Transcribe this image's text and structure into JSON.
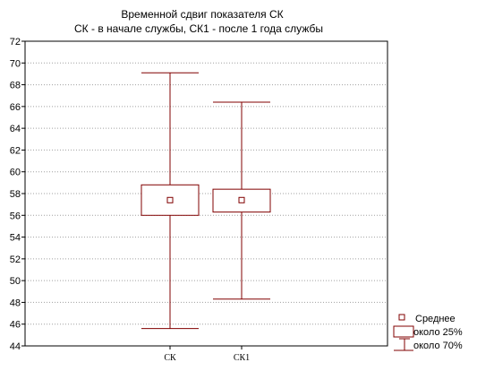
{
  "chart_data": {
    "type": "boxplot",
    "title": "Временной сдвиг показателя СК",
    "subtitle": "СК - в начале службы, СК1 - после 1 года службы",
    "categories": [
      "СК",
      "СК1"
    ],
    "series": [
      {
        "category": "СК",
        "mean": 57.4,
        "box_low": 56.0,
        "box_high": 58.8,
        "whisker_low": 45.6,
        "whisker_high": 69.1
      },
      {
        "category": "СК1",
        "mean": 57.4,
        "box_low": 56.3,
        "box_high": 58.4,
        "whisker_low": 48.3,
        "whisker_high": 66.4
      }
    ],
    "ylim": [
      44,
      72
    ],
    "yticks": [
      44,
      46,
      48,
      50,
      52,
      54,
      56,
      58,
      60,
      62,
      64,
      66,
      68,
      70,
      72
    ],
    "grid": true,
    "legend_position": "bottom-right",
    "legend": {
      "mean": "Среднее",
      "box": "около 25%",
      "whisker": "около 70%"
    },
    "colors": {
      "series": "#800000",
      "grid": "#a0a0a0",
      "axis": "#000000"
    }
  }
}
